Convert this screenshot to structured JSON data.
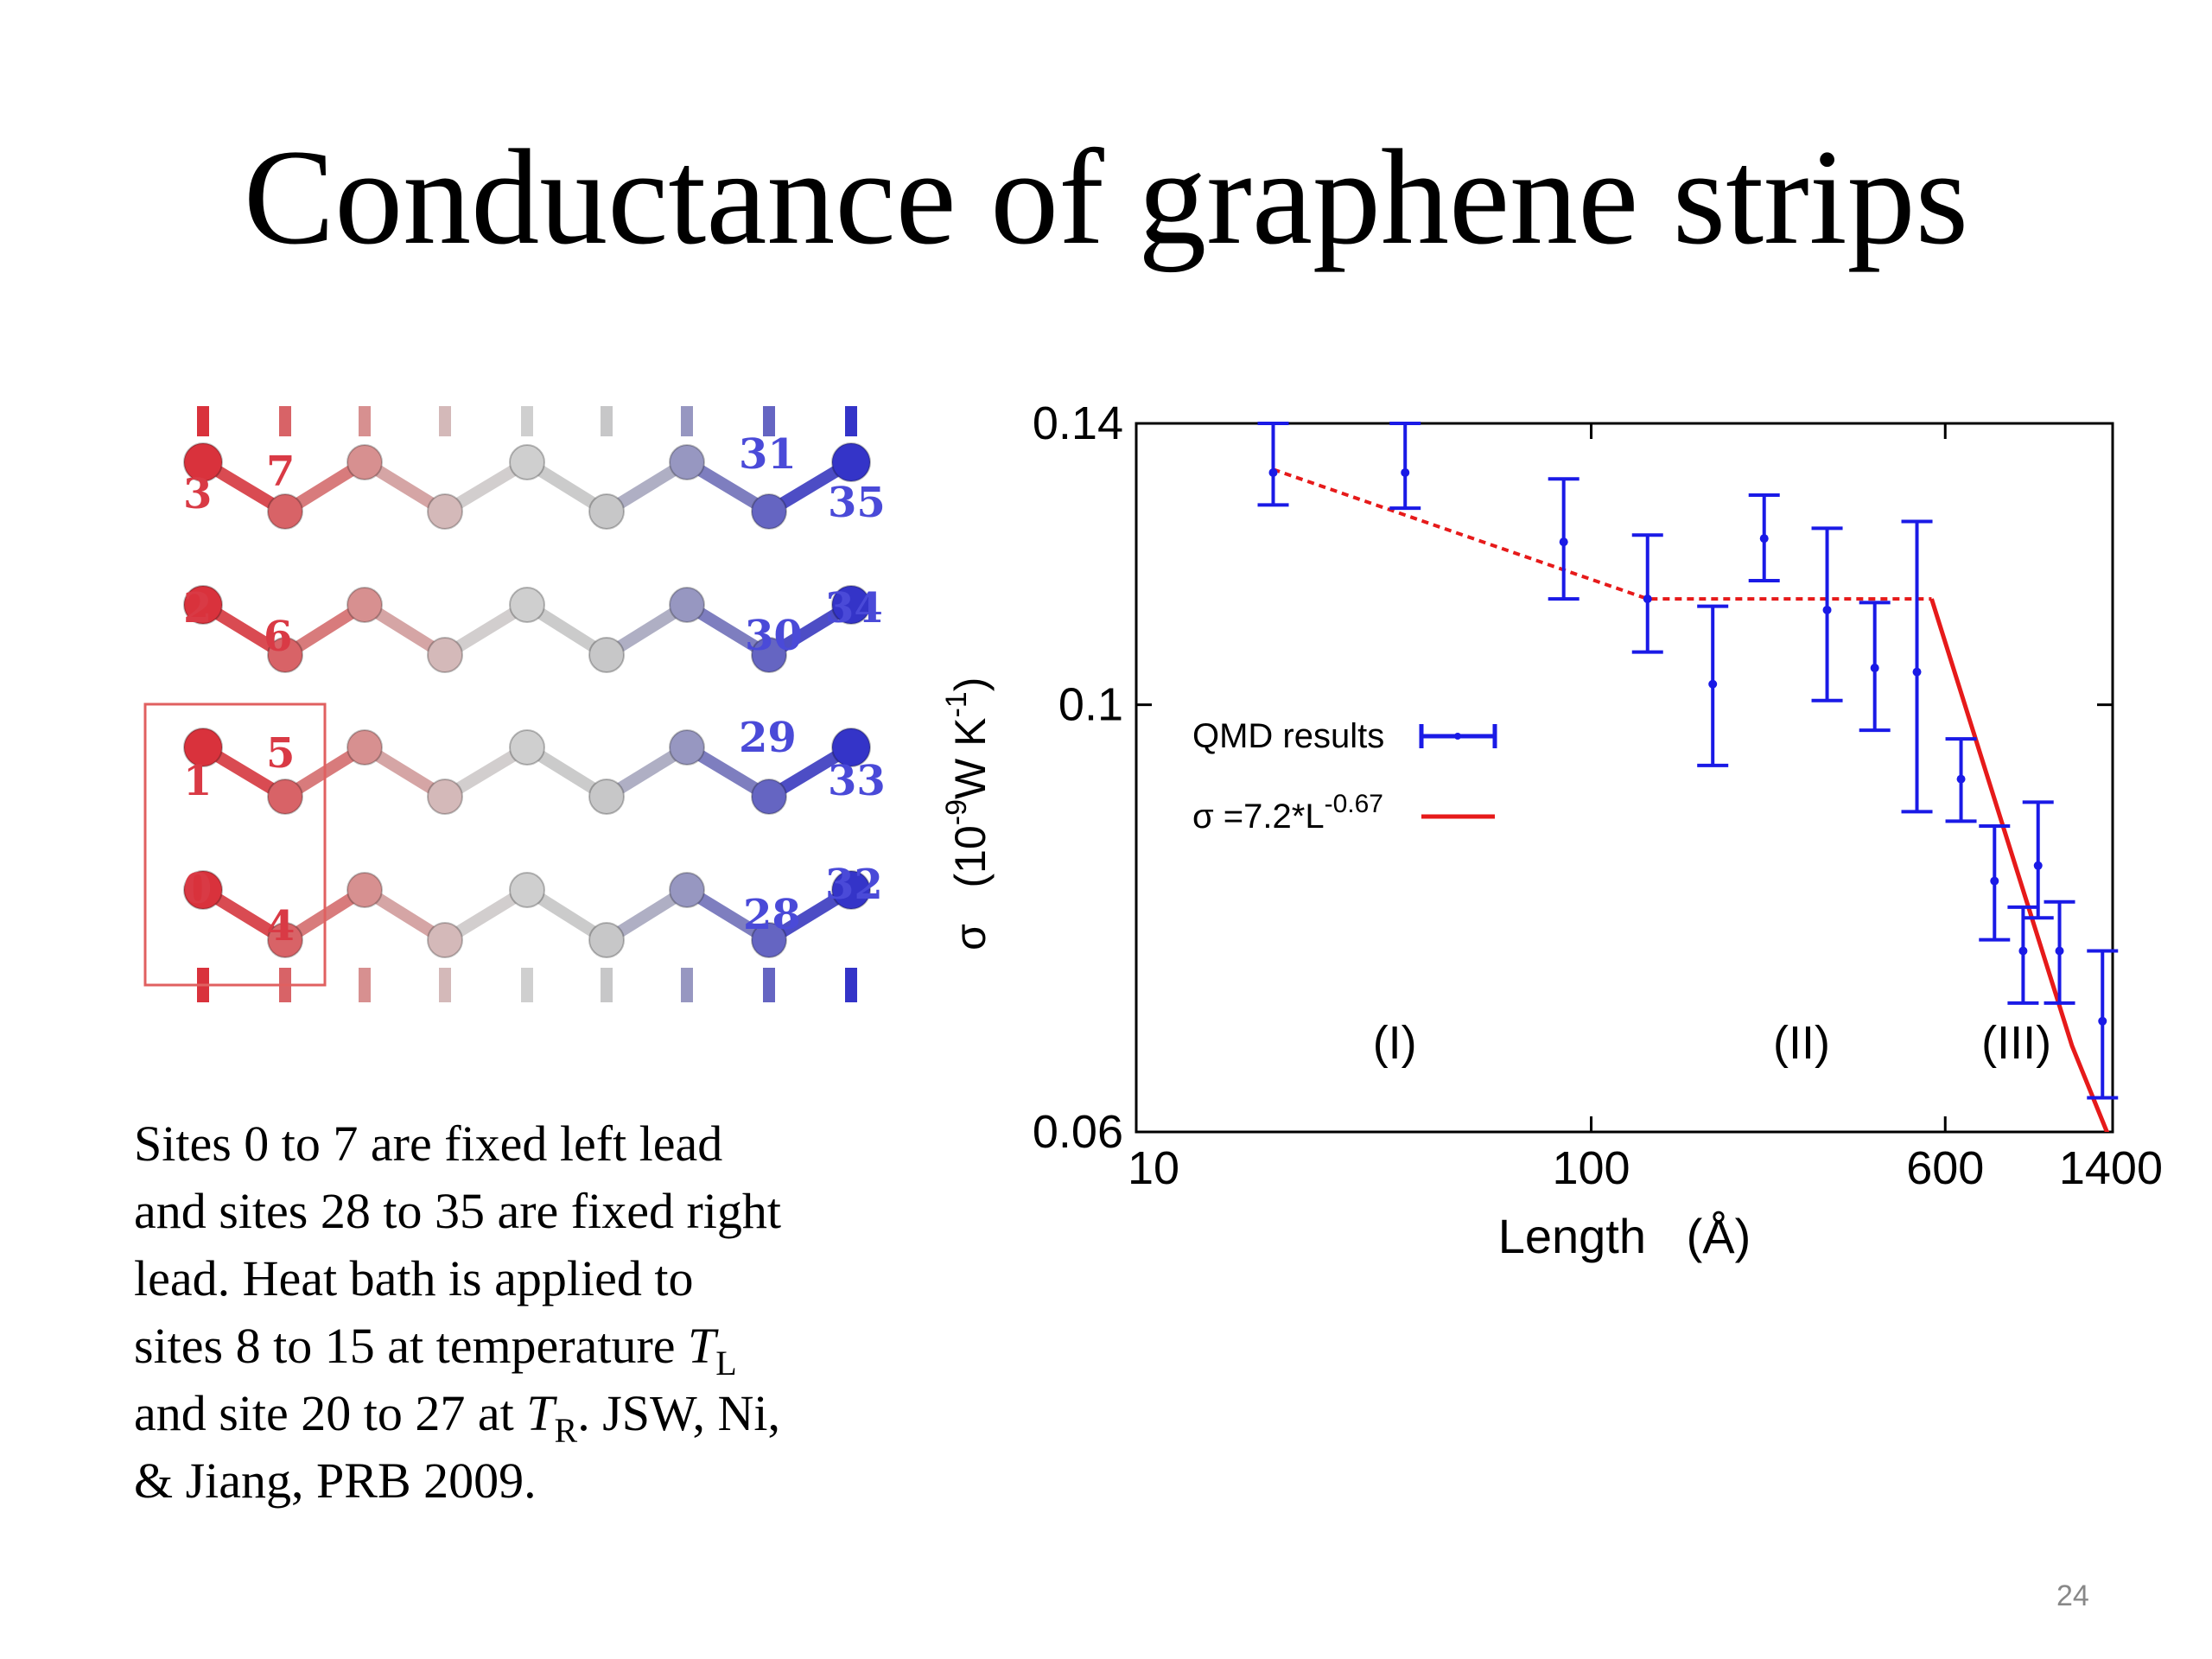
{
  "slide": {
    "title": "Conductance of graphene strips",
    "page_number": "24"
  },
  "caption": {
    "line1": "Sites 0 to 7 are fixed left lead",
    "line2": "and sites 28 to 35 are fixed right",
    "line3": "lead.  Heat bath is applied to",
    "line4_pre": "sites 8 to 15 at temperature ",
    "line4_T": "T",
    "line4_sub": "L",
    "line5_pre": "and site 20 to 27 at ",
    "line5_T": "T",
    "line5_sub": "R",
    "line5_post": ". JSW, Ni,",
    "line6": "& Jiang, PRB 2009."
  },
  "lattice": {
    "left_labels": [
      "3",
      "7",
      "2",
      "6",
      "1",
      "5",
      "0",
      "4"
    ],
    "right_labels": [
      "31",
      "35",
      "34",
      "30",
      "29",
      "33",
      "32",
      "28"
    ],
    "colors": {
      "left": "#d93a45",
      "right": "#4a4ad8",
      "box": "#e06060"
    }
  },
  "chart_data": {
    "type": "scatter",
    "x_scale": "log",
    "y_scale": "log",
    "xlim": [
      10,
      1400
    ],
    "ylim": [
      0.06,
      0.14
    ],
    "x_ticks": [
      "10",
      "100",
      "600",
      "1400"
    ],
    "y_ticks": [
      "0.14",
      "0.1",
      "0.06"
    ],
    "xlabel": "Length   (Å)",
    "ylabel": {
      "sigma": "σ",
      "open": "   (10",
      "exp1": "-9",
      "mid": "W K",
      "exp2": "-1",
      "close": ")"
    },
    "legend_position": "center-left",
    "series": [
      {
        "name": "QMD results",
        "kind": "errorbar",
        "color": "#1a1ae6",
        "points": [
          {
            "x": 20,
            "y": 0.132,
            "low": 0.127,
            "high": 0.14
          },
          {
            "x": 39,
            "y": 0.132,
            "low": 0.1265,
            "high": 0.14
          },
          {
            "x": 87,
            "y": 0.1215,
            "low": 0.1135,
            "high": 0.131
          },
          {
            "x": 133,
            "y": 0.1135,
            "low": 0.1065,
            "high": 0.1225
          },
          {
            "x": 185,
            "y": 0.1025,
            "low": 0.093,
            "high": 0.1125
          },
          {
            "x": 240,
            "y": 0.122,
            "low": 0.116,
            "high": 0.1285
          },
          {
            "x": 330,
            "y": 0.112,
            "low": 0.1005,
            "high": 0.1235
          },
          {
            "x": 420,
            "y": 0.1045,
            "low": 0.097,
            "high": 0.113
          },
          {
            "x": 520,
            "y": 0.104,
            "low": 0.088,
            "high": 0.1245
          },
          {
            "x": 650,
            "y": 0.0915,
            "low": 0.087,
            "high": 0.096
          },
          {
            "x": 770,
            "y": 0.081,
            "low": 0.0755,
            "high": 0.0865
          },
          {
            "x": 890,
            "y": 0.0745,
            "low": 0.07,
            "high": 0.0785
          },
          {
            "x": 960,
            "y": 0.0825,
            "low": 0.0775,
            "high": 0.089
          },
          {
            "x": 1070,
            "y": 0.0745,
            "low": 0.07,
            "high": 0.079
          },
          {
            "x": 1330,
            "y": 0.0685,
            "low": 0.0625,
            "high": 0.0745
          }
        ]
      },
      {
        "name": "σ =7.2*L",
        "name_exponent": "-0.67",
        "kind": "line",
        "color": "#e61a1a",
        "points": [
          [
            560,
            0.1135
          ],
          [
            1140,
            0.0665
          ],
          [
            1400,
            0.059
          ]
        ]
      },
      {
        "kind": "dotted-line",
        "color": "#e61a1a",
        "points": [
          [
            20,
            0.1325
          ],
          [
            133,
            0.1135
          ],
          [
            560,
            0.1135
          ]
        ]
      }
    ],
    "annotations": [
      {
        "text": "(I)",
        "x": 37,
        "y": 0.0655
      },
      {
        "text": "(II)",
        "x": 290,
        "y": 0.0655
      },
      {
        "text": "(III)",
        "x": 860,
        "y": 0.0655
      }
    ]
  }
}
